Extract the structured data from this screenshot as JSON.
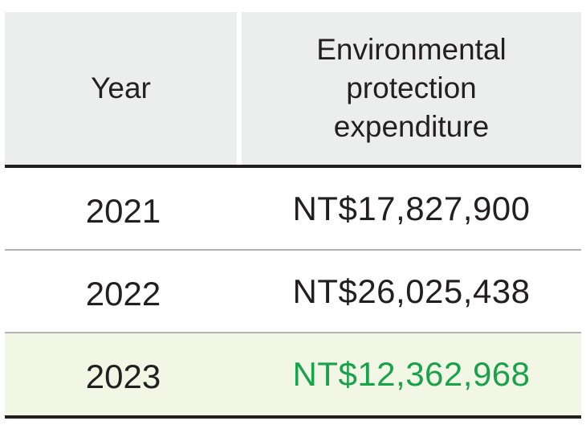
{
  "table": {
    "headers": {
      "year": "Year",
      "expenditure_lines": [
        "Environmental",
        "protection",
        "expenditure"
      ]
    },
    "rows": [
      {
        "year": "2021",
        "value": "NT$17,827,900"
      },
      {
        "year": "2022",
        "value": "NT$26,025,438"
      },
      {
        "year": "2023",
        "value": "NT$12,362,968"
      }
    ],
    "colors": {
      "header_bg": "#eceeee",
      "highlight_row_bg": "#f2f6e4",
      "highlight_value": "#1aa14b",
      "text": "#231f20"
    }
  }
}
